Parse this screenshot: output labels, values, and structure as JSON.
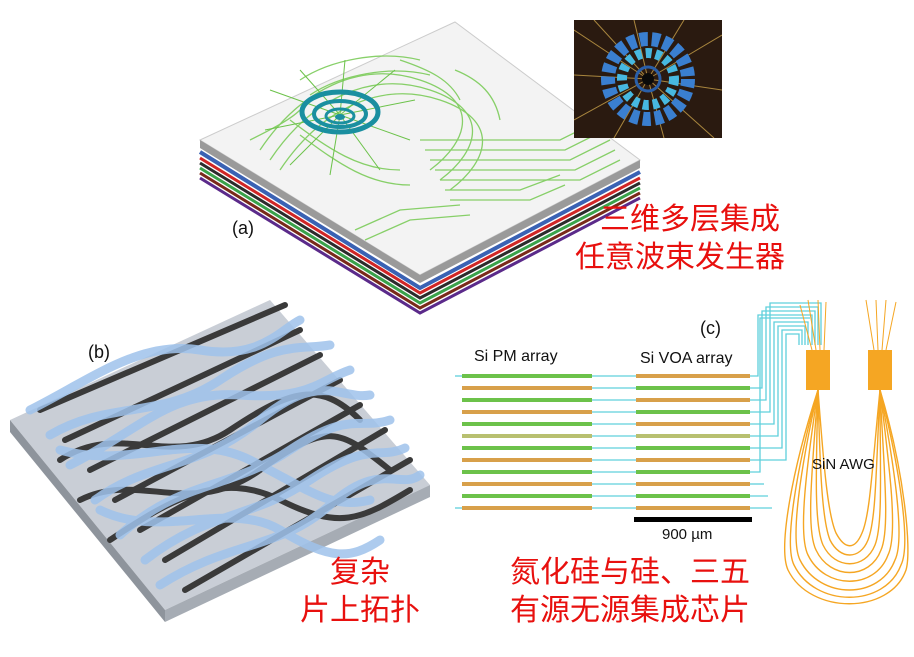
{
  "panels": {
    "a": {
      "label": "(a)",
      "caption_line1": "三维多层集成",
      "caption_line2": "任意波束发生器"
    },
    "b": {
      "label": "(b)",
      "caption_line1": "复杂",
      "caption_line2": "片上拓扑"
    },
    "c": {
      "label": "(c)",
      "pm_array_label": "Si PM array",
      "voa_array_label": "Si VOA array",
      "scale_bar_label": "900 µm",
      "awg_label": "SiN AWG",
      "caption_line1": "氮化硅与硅、三五",
      "caption_line2": "有源无源集成芯片"
    }
  },
  "colors": {
    "caption_red": "#e8100e",
    "waveguide_green": "#6cc24a",
    "waveguide_blue": "#8fb8e6",
    "waveguide_cyan": "#5fd0dc",
    "awg_orange": "#f5a623"
  }
}
